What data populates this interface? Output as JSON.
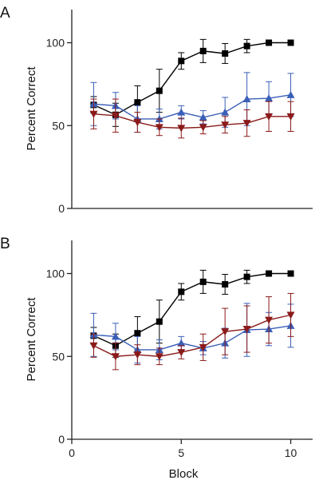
{
  "chart_data": [
    {
      "type": "line",
      "panel_label": "A",
      "ylabel": "Percent Correct",
      "xlabel": "",
      "xlim": [
        0,
        11
      ],
      "ylim": [
        0,
        120
      ],
      "yticks": [
        0,
        50,
        100
      ],
      "xticks": [],
      "grid": false,
      "x": [
        1,
        2,
        3,
        4,
        5,
        6,
        7,
        8,
        9,
        10
      ],
      "series": [
        {
          "color": "#000000",
          "marker": "square",
          "values": [
            62.5,
            56.5,
            64,
            71,
            89,
            95,
            93.5,
            98,
            100,
            100
          ],
          "error": [
            5,
            7,
            10,
            13,
            5,
            7,
            6,
            4,
            0,
            0
          ]
        },
        {
          "color": "#3a5fb8",
          "marker": "triangle-up",
          "values": [
            63,
            62,
            54,
            54,
            58,
            55,
            58,
            66,
            66.5,
            68.5
          ],
          "error": [
            13,
            8,
            8,
            6,
            4,
            4,
            9,
            16,
            10,
            13
          ]
        },
        {
          "color": "#8b1a1a",
          "marker": "triangle-down",
          "values": [
            57,
            56,
            52,
            49,
            48.5,
            49,
            50.5,
            51.5,
            55.5,
            55.5
          ],
          "error": [
            9,
            10,
            6,
            5,
            6,
            4,
            5,
            8,
            9,
            9
          ]
        }
      ]
    },
    {
      "type": "line",
      "panel_label": "B",
      "ylabel": "Percent Correct",
      "xlabel": "Block",
      "xlim": [
        0,
        11
      ],
      "ylim": [
        0,
        120
      ],
      "yticks": [
        0,
        50,
        100
      ],
      "xticks": [
        0,
        5,
        10
      ],
      "grid": false,
      "x": [
        1,
        2,
        3,
        4,
        5,
        6,
        7,
        8,
        9,
        10
      ],
      "series": [
        {
          "color": "#000000",
          "marker": "square",
          "values": [
            62.5,
            56.5,
            64,
            71,
            89,
            95,
            93.5,
            98,
            100,
            100
          ],
          "error": [
            5,
            7,
            10,
            13,
            5,
            7,
            6,
            4,
            0,
            0
          ]
        },
        {
          "color": "#3a5fb8",
          "marker": "triangle-up",
          "values": [
            63,
            62,
            54,
            54,
            58,
            55,
            58,
            66,
            66.5,
            68.5
          ],
          "error": [
            13,
            8,
            8,
            6,
            4,
            4,
            9,
            16,
            10,
            13
          ]
        },
        {
          "color": "#8b1a1a",
          "marker": "triangle-down",
          "values": [
            56.5,
            50,
            51,
            50,
            52.5,
            55.5,
            65,
            66.5,
            72,
            75
          ],
          "error": [
            7,
            8,
            6,
            5,
            4,
            8,
            14,
            14,
            14,
            13
          ]
        }
      ]
    }
  ]
}
